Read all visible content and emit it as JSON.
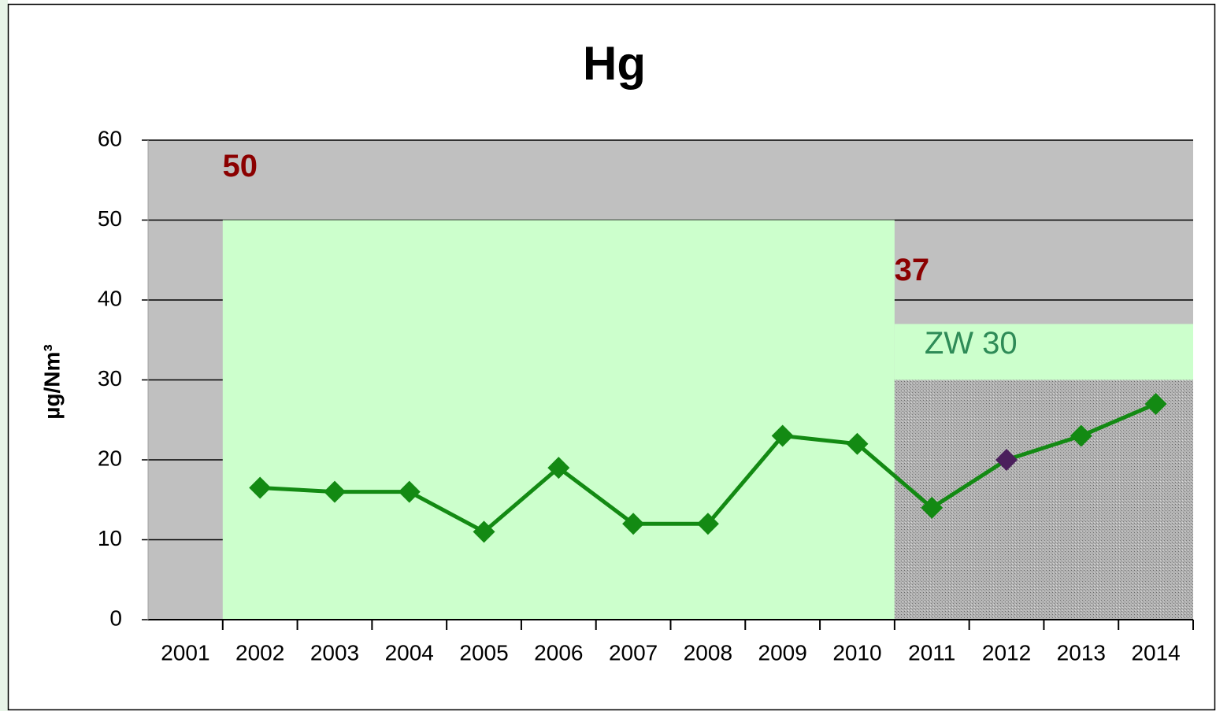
{
  "chart_data": {
    "type": "line",
    "title": "Hg",
    "y_label": "µg/Nm³",
    "categories": [
      "2001",
      "2002",
      "2003",
      "2004",
      "2005",
      "2006",
      "2007",
      "2008",
      "2009",
      "2010",
      "2011",
      "2012",
      "2013",
      "2014"
    ],
    "series": [
      {
        "name": "Hg",
        "color": "#138a13",
        "values": [
          null,
          16.5,
          16,
          16,
          11,
          19,
          12,
          12,
          23,
          22,
          14,
          20,
          23,
          27
        ],
        "point_colors": [
          null,
          "#138a13",
          "#138a13",
          "#138a13",
          "#138a13",
          "#138a13",
          "#138a13",
          "#138a13",
          "#138a13",
          "#138a13",
          "#138a13",
          "#4b1f5c",
          "#138a13",
          "#138a13"
        ]
      }
    ],
    "limits": [
      {
        "value": 50,
        "start": "2002",
        "end": "2010"
      },
      {
        "value": 37,
        "start": "2011",
        "end": "2014"
      }
    ],
    "target": {
      "label": "ZW 30",
      "value": 30,
      "start": "2011",
      "end": "2014"
    },
    "ylim": [
      0,
      60
    ],
    "yticks": [
      0,
      10,
      20,
      30,
      40,
      50,
      60
    ],
    "grid": true
  }
}
